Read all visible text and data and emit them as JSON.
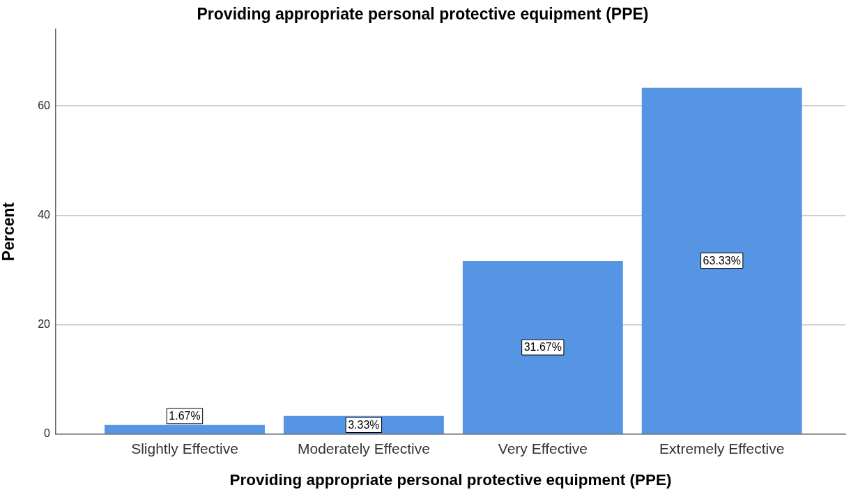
{
  "chart_data": {
    "type": "bar",
    "title": "Providing appropriate personal protective equipment (PPE)",
    "xlabel": "Providing appropriate personal protective equipment (PPE)",
    "ylabel": "Percent",
    "categories": [
      "Slightly Effective",
      "Moderately Effective",
      "Very Effective",
      "Extremely Effective"
    ],
    "values": [
      1.67,
      3.33,
      31.67,
      63.33
    ],
    "color": "#5595e3",
    "value_labels": [
      "1.67%",
      "3.33%",
      "31.67%",
      "63.33%"
    ],
    "ylim": [
      0,
      74
    ],
    "yticks": [
      0,
      20,
      40,
      60
    ],
    "grid": "y"
  }
}
